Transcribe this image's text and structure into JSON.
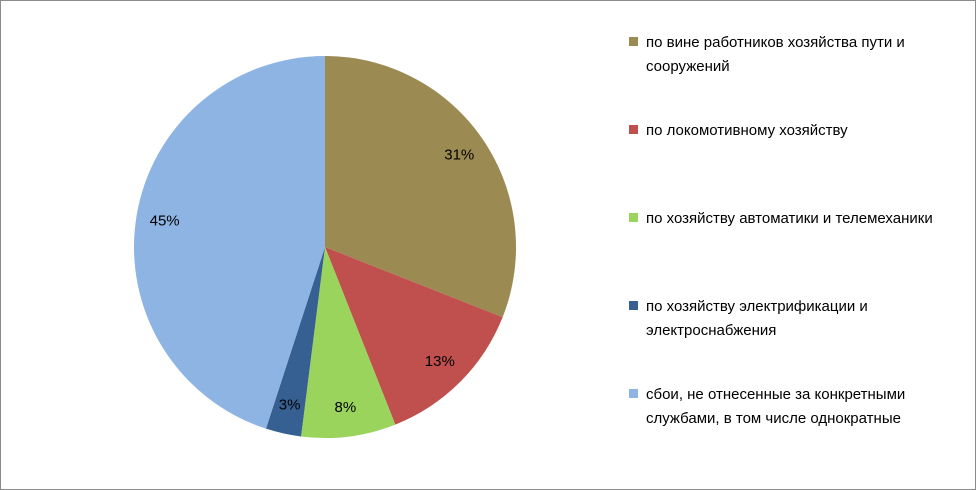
{
  "chart_data": {
    "type": "pie",
    "categories": [
      "по вине  работников хозяйства пути и  сооружений",
      "по локомотивному хозяйству",
      "по хозяйству автоматики и телемеханики",
      "по хозяйству электрификации и электроснабжения",
      "сбои, не отнесенные за конкретными службами, в том числе однократные"
    ],
    "values": [
      31,
      13,
      8,
      3,
      45
    ],
    "value_labels": [
      "31%",
      "13%",
      "8%",
      "3%",
      "45%"
    ],
    "colors": [
      "#9b8b53",
      "#c0504d",
      "#9bd45c",
      "#376092",
      "#8eb4e3"
    ],
    "legend": "right"
  }
}
